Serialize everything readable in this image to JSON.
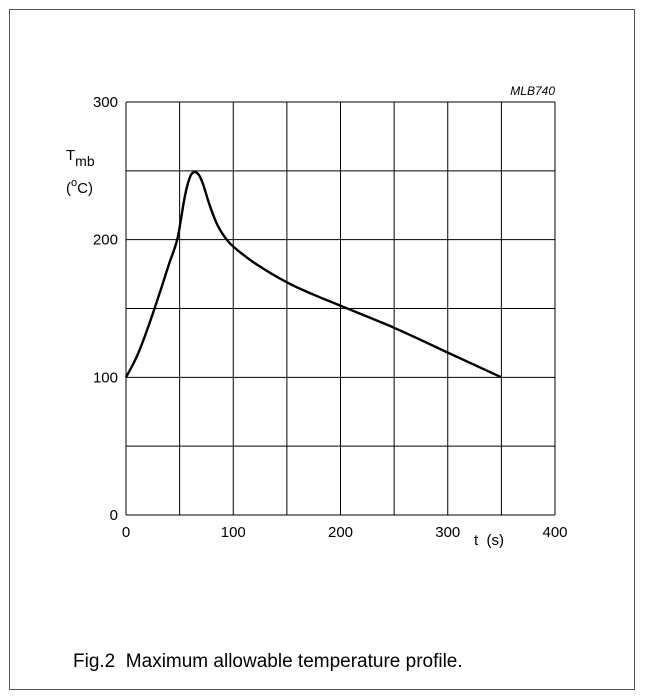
{
  "chart_data": {
    "type": "line",
    "title": "",
    "code": "MLB740",
    "ylabel": {
      "symbol": "T",
      "subscript": "mb",
      "unit_open": "(",
      "unit_sup": "o",
      "unit_close": "C)"
    },
    "xlabel": "t  (s)",
    "xlim": [
      0,
      400
    ],
    "ylim": [
      0,
      300
    ],
    "xticks": [
      0,
      100,
      200,
      300,
      400
    ],
    "yticks": [
      0,
      100,
      200,
      300
    ],
    "x_grid_step": 50,
    "y_grid_step": 50,
    "grid": true,
    "series": [
      {
        "points": [
          [
            0,
            100
          ],
          [
            10,
            115
          ],
          [
            20,
            135
          ],
          [
            30,
            158
          ],
          [
            40,
            182
          ],
          [
            48,
            201
          ],
          [
            55,
            232
          ],
          [
            60,
            246
          ],
          [
            64,
            249
          ],
          [
            68,
            247
          ],
          [
            72,
            240
          ],
          [
            78,
            225
          ],
          [
            85,
            211
          ],
          [
            92,
            202
          ],
          [
            100,
            195
          ],
          [
            120,
            183
          ],
          [
            150,
            169
          ],
          [
            175,
            160
          ],
          [
            200,
            152
          ],
          [
            250,
            136
          ],
          [
            300,
            118
          ],
          [
            350,
            100
          ]
        ]
      }
    ]
  },
  "caption": "Fig.2  Maximum allowable temperature profile."
}
